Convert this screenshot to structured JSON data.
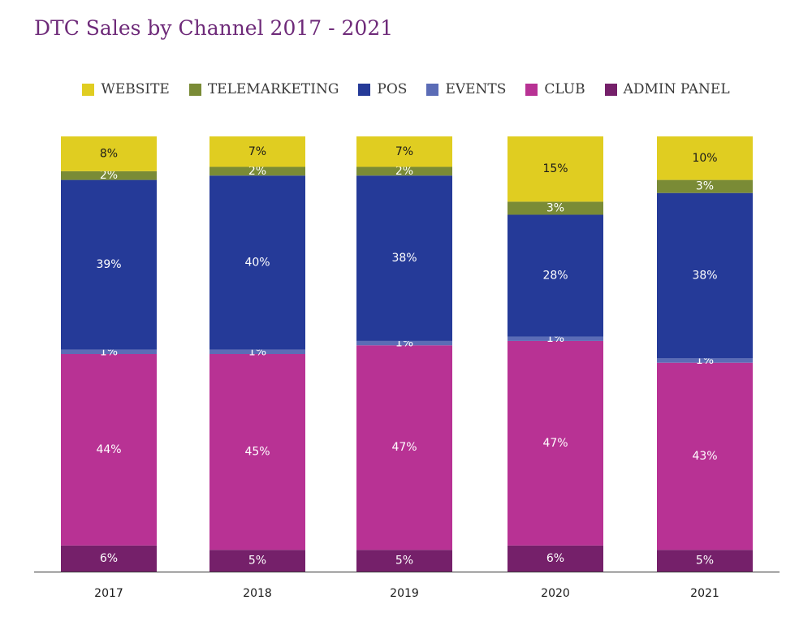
{
  "chart_data": {
    "type": "bar",
    "stacked": true,
    "title": "DTC Sales by Channel 2017 - 2021",
    "categories": [
      "2017",
      "2018",
      "2019",
      "2020",
      "2021"
    ],
    "series": [
      {
        "name": "ADMIN PANEL",
        "color": "#75206a",
        "values": [
          6,
          5,
          5,
          6,
          5
        ],
        "labels": [
          "6%",
          "5%",
          "5%",
          "6%",
          "5%"
        ],
        "label_color": "#ffffff"
      },
      {
        "name": "CLUB",
        "color": "#b83294",
        "values": [
          44,
          45,
          47,
          47,
          43
        ],
        "labels": [
          "44%",
          "45%",
          "47%",
          "47%",
          "43%"
        ],
        "label_color": "#ffffff"
      },
      {
        "name": "EVENTS",
        "color": "#5b6cb6",
        "values": [
          1,
          1,
          1,
          1,
          1
        ],
        "labels": [
          "1%",
          "1%",
          "1%",
          "1%",
          "1%"
        ],
        "label_color": "#ffffff"
      },
      {
        "name": "POS",
        "color": "#253a98",
        "values": [
          39,
          40,
          38,
          28,
          38
        ],
        "labels": [
          "39%",
          "40%",
          "38%",
          "28%",
          "38%"
        ],
        "label_color": "#ffffff"
      },
      {
        "name": "TELEMARKETING",
        "color": "#7a8b36",
        "values": [
          2,
          2,
          2,
          3,
          3
        ],
        "labels": [
          "2%",
          "2%",
          "2%",
          "3%",
          "3%"
        ],
        "label_color": "#ffffff"
      },
      {
        "name": "WEBSITE",
        "color": "#e0cd21",
        "values": [
          8,
          7,
          7,
          15,
          10
        ],
        "labels": [
          "8%",
          "7%",
          "7%",
          "15%",
          "10%"
        ],
        "label_color": "#1a1a1a"
      }
    ],
    "legend_order": [
      "WEBSITE",
      "TELEMARKETING",
      "POS",
      "EVENTS",
      "CLUB",
      "ADMIN PANEL"
    ],
    "legend_position": "top",
    "ylim": [
      0,
      100
    ],
    "grid": false,
    "xlabel": "",
    "ylabel": ""
  }
}
